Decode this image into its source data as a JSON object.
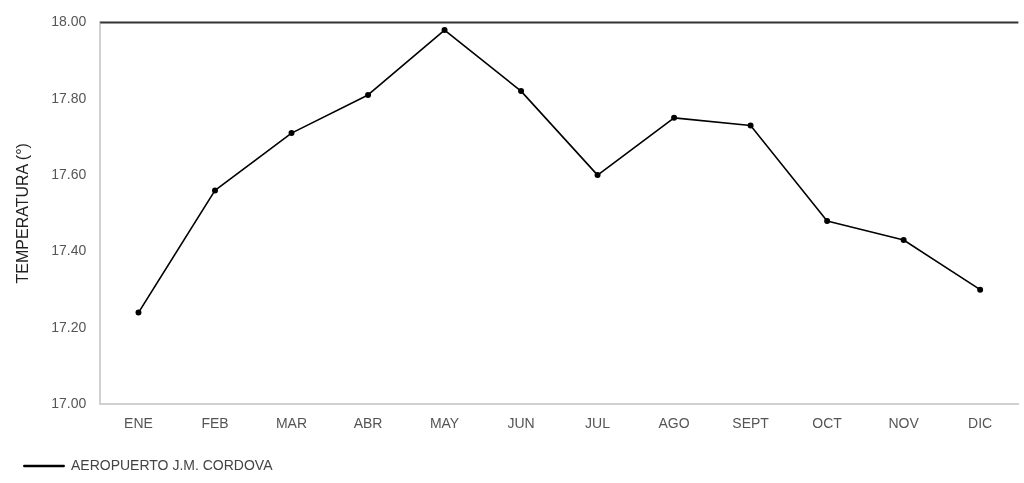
{
  "chart_data": {
    "type": "line",
    "ylabel": "TEMPERATURA (°)",
    "categories": [
      "ENE",
      "FEB",
      "MAR",
      "ABR",
      "MAY",
      "JUN",
      "JUL",
      "AGO",
      "SEPT",
      "OCT",
      "NOV",
      "DIC"
    ],
    "series": [
      {
        "name": "AEROPUERTO J.M. CORDOVA",
        "color": "#000000",
        "values": [
          17.24,
          17.56,
          17.71,
          17.81,
          17.98,
          17.82,
          17.6,
          17.75,
          17.73,
          17.48,
          17.43,
          17.3
        ]
      }
    ],
    "ylim": [
      17.0,
      18.0
    ],
    "yticks": [
      {
        "value": 17.0,
        "label": "17.00"
      },
      {
        "value": 17.2,
        "label": "17.20"
      },
      {
        "value": 17.4,
        "label": "17.40"
      },
      {
        "value": 17.6,
        "label": "17.60"
      },
      {
        "value": 17.8,
        "label": "17.80"
      },
      {
        "value": 18.0,
        "label": "18.00"
      }
    ],
    "grid": false,
    "legend": "bottom left",
    "marker": "circle",
    "line_style": "solid"
  }
}
